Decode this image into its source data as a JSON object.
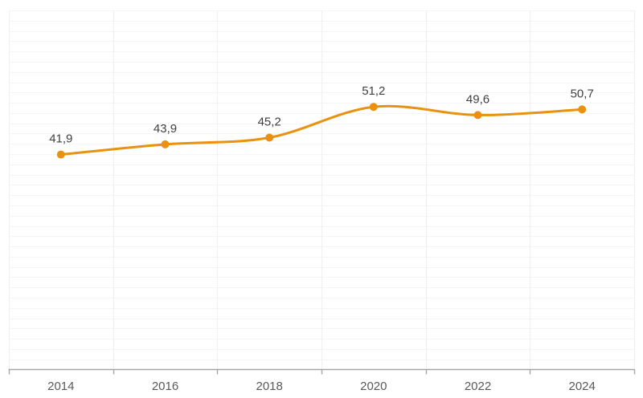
{
  "chart_data": {
    "type": "line",
    "title": "",
    "xlabel": "",
    "ylabel": "",
    "categories": [
      "2014",
      "2016",
      "2018",
      "2020",
      "2022",
      "2024"
    ],
    "values": [
      41.9,
      43.9,
      45.2,
      51.2,
      49.6,
      50.7
    ],
    "point_labels": [
      "41,9",
      "43,9",
      "45,2",
      "51,2",
      "49,6",
      "50,7"
    ],
    "ylim": [
      0,
      70
    ],
    "grid_step": 2,
    "grid_on": true,
    "smooth": true,
    "legend_position": "none",
    "colors": {
      "line": "#E8920F",
      "marker": "#E8920F",
      "data_label": "#404040",
      "axis": "#A6A6A6",
      "axis_label": "#595959",
      "grid_h": "#F4F4F4",
      "grid_v": "#EFEFEF",
      "background": "#FFFFFF"
    }
  }
}
